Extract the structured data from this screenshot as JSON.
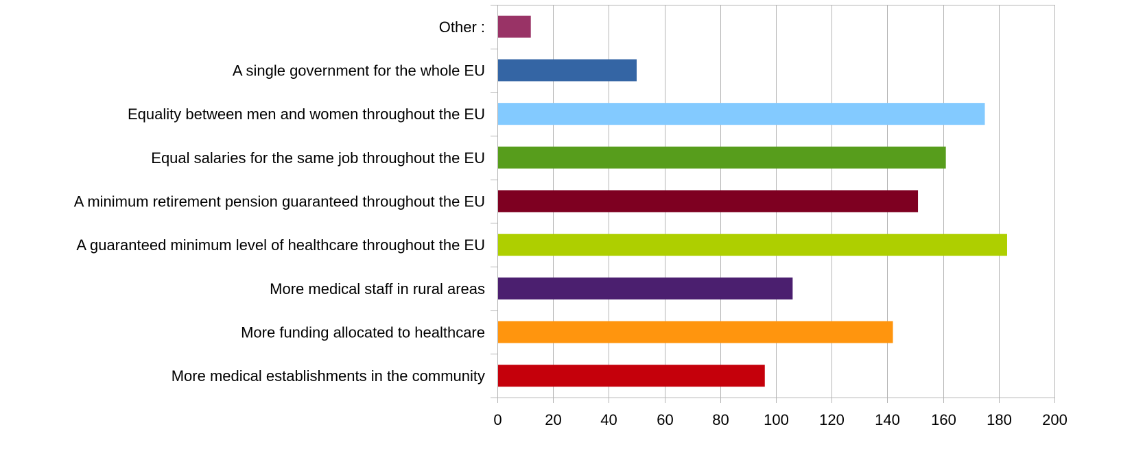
{
  "chart_data": {
    "type": "bar",
    "orientation": "horizontal",
    "categories": [
      "Other :",
      "A single government for the whole EU",
      "Equality between men and women throughout the  EU",
      "Equal salaries for the same job throughout the EU",
      "A minimum retirement pension  guaranteed  throughout the  EU",
      "A guaranteed minimum level of healthcare throughout the EU",
      "More medical staff in rural areas",
      "More funding allocated to healthcare",
      "More medical establishments in the community"
    ],
    "values": [
      12,
      50,
      175,
      161,
      151,
      183,
      106,
      142,
      96
    ],
    "colors": [
      "#993366",
      "#3465a4",
      "#83caff",
      "#579d1c",
      "#7e0021",
      "#aecf00",
      "#4b1f6f",
      "#ff950e",
      "#c5000b"
    ],
    "xlim": [
      0,
      200
    ],
    "xticks": [
      0,
      20,
      40,
      60,
      80,
      100,
      120,
      140,
      160,
      180,
      200
    ],
    "grid": true,
    "legend": "none",
    "title": "",
    "xlabel": "",
    "ylabel": ""
  }
}
